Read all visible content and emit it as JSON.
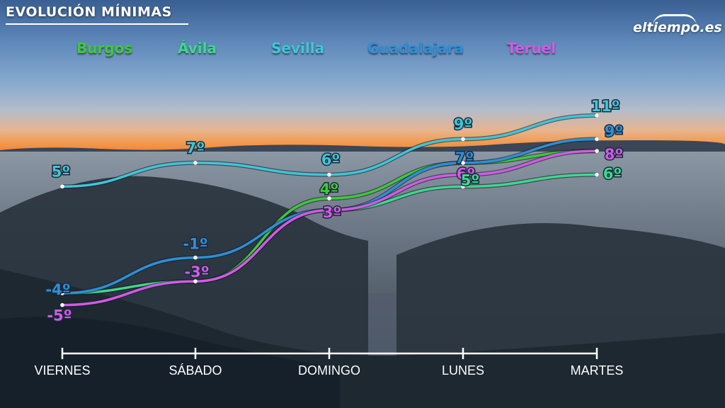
{
  "title": "EVOLUCIÓN MÍNIMAS",
  "logo": "eltiempo.es",
  "chart_data": {
    "type": "line",
    "categories": [
      "VIERNES",
      "SÁBADO",
      "DOMINGO",
      "LUNES",
      "MARTES"
    ],
    "unit": "º",
    "series": [
      {
        "name": "Burgos",
        "color": "#3fc93a",
        "values": [
          -4,
          -3,
          4,
          7,
          8
        ]
      },
      {
        "name": "Ávila",
        "color": "#3fd78e",
        "values": [
          -4,
          -3,
          3,
          5,
          6
        ]
      },
      {
        "name": "Sevilla",
        "color": "#3fc6d8",
        "values": [
          5,
          7,
          6,
          9,
          11
        ]
      },
      {
        "name": "Guadalajara",
        "color": "#2f8fd6",
        "values": [
          -4,
          -1,
          3,
          7,
          9
        ]
      },
      {
        "name": "Teruel",
        "color": "#d45ae6",
        "values": [
          -5,
          -3,
          3,
          6,
          8
        ]
      }
    ],
    "labels": [
      {
        "series": "Sevilla",
        "text": "5º",
        "color": "#3fc6d8",
        "value": 5,
        "day": 0
      },
      {
        "series": "Sevilla",
        "text": "7º",
        "color": "#3fc6d8",
        "value": 7,
        "day": 1
      },
      {
        "series": "Sevilla",
        "text": "6º",
        "color": "#3fc6d8",
        "value": 6,
        "day": 2
      },
      {
        "series": "Sevilla",
        "text": "9º",
        "color": "#3fc6d8",
        "value": 9,
        "day": 3
      },
      {
        "series": "Sevilla",
        "text": "11º",
        "color": "#3fc6d8",
        "value": 11,
        "day": 4
      },
      {
        "series": "Guadalajara",
        "text": "-4º",
        "color": "#2f8fd6",
        "value": -4,
        "day": 0
      },
      {
        "series": "Guadalajara",
        "text": "-1º",
        "color": "#2f8fd6",
        "value": -1,
        "day": 1
      },
      {
        "series": "Guadalajara",
        "text": "7º",
        "color": "#2f8fd6",
        "value": 7,
        "day": 3
      },
      {
        "series": "Guadalajara",
        "text": "9º",
        "color": "#2f8fd6",
        "value": 9,
        "day": 4
      },
      {
        "series": "Teruel",
        "text": "-5º",
        "color": "#d45ae6",
        "value": -5,
        "day": 0
      },
      {
        "series": "Teruel",
        "text": "-3º",
        "color": "#d45ae6",
        "value": -3,
        "day": 1
      },
      {
        "series": "Teruel",
        "text": "3º",
        "color": "#d45ae6",
        "value": 3,
        "day": 2
      },
      {
        "series": "Teruel",
        "text": "6º",
        "color": "#d45ae6",
        "value": 6,
        "day": 3
      },
      {
        "series": "Teruel",
        "text": "8º",
        "color": "#d45ae6",
        "value": 8,
        "day": 4
      },
      {
        "series": "Burgos",
        "text": "4º",
        "color": "#3fc93a",
        "value": 4,
        "day": 2
      },
      {
        "series": "Ávila",
        "text": "5º",
        "color": "#3fd78e",
        "value": 5,
        "day": 3
      },
      {
        "series": "Ávila",
        "text": "6º",
        "color": "#3fd78e",
        "value": 6,
        "day": 4
      }
    ]
  }
}
